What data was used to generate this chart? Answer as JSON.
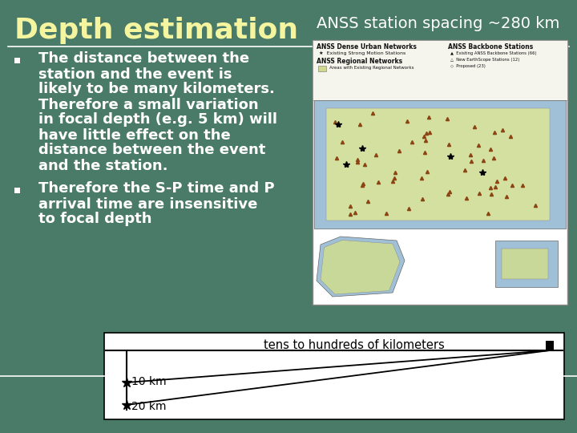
{
  "bg_color": "#4a7a68",
  "title": "Depth estimation",
  "title_color": "#f5f5a0",
  "title_fontsize": 26,
  "anss_title": "ANSS station spacing ~280 km",
  "anss_title_color": "#ffffff",
  "anss_title_fontsize": 14,
  "bullet_color": "#ffffff",
  "bullet_fontsize": 13,
  "bullet_indent": 30,
  "bullet_sq_size": 7,
  "bullet1_lines": [
    "The distance between the",
    "station and the event is",
    "likely to be many kilometers.",
    "Therefore a small variation",
    "in focal depth (e.g. 5 km) will",
    "have little effect on the",
    "distance between the event",
    "and the station."
  ],
  "bullet2_lines": [
    "Therefore the S-P time and P",
    "arrival time are insensitive",
    "to focal depth"
  ],
  "diagram_label": "tens to hundreds of kilometers",
  "depth_label1": "10 km",
  "depth_label2": "20 km",
  "line_color": "#ffffff",
  "diagram_bg": "#ffffff",
  "diagram_line_color": "#000000",
  "map_panel_bg": "#ffffff",
  "map_panel_border": "#888888",
  "map_legend_bg": "#f0f0e0",
  "map_us_color": "#d4e0a0",
  "map_water_color": "#a0c0d8",
  "map_alaska_color": "#c8d898",
  "map_hawaii_color": "#c8d898"
}
